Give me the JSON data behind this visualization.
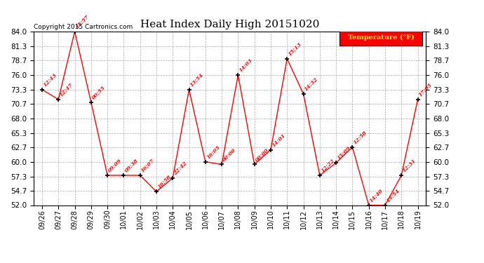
{
  "title": "Heat Index Daily High 20151020",
  "copyright_text": "Copyright 2015 Cartronics.com",
  "legend_label": "Temperature (°F)",
  "dates": [
    "09/26",
    "09/27",
    "09/28",
    "09/29",
    "09/30",
    "10/01",
    "10/02",
    "10/03",
    "10/04",
    "10/05",
    "10/06",
    "10/07",
    "10/08",
    "10/09",
    "10/10",
    "10/11",
    "10/12",
    "10/13",
    "10/14",
    "10/15",
    "10/16",
    "10/17",
    "10/18",
    "10/19"
  ],
  "values": [
    73.3,
    71.5,
    84.0,
    71.0,
    57.5,
    57.5,
    57.5,
    54.5,
    57.0,
    73.3,
    60.0,
    59.5,
    76.0,
    59.5,
    62.2,
    79.0,
    72.5,
    57.5,
    59.8,
    62.7,
    52.0,
    52.0,
    57.5,
    71.5
  ],
  "labels": [
    "12:43",
    "12:47",
    "15:57",
    "00:55",
    "09:09",
    "09:38",
    "16:07",
    "16:58",
    "22:42",
    "13:54",
    "16:05",
    "00:00",
    "14:03",
    "00:00",
    "14:01",
    "15:13",
    "14:32",
    "12:22",
    "15:09",
    "12:58",
    "14:40",
    "13:54",
    "12:31",
    "17:05"
  ],
  "ylim_min": 52.0,
  "ylim_max": 84.0,
  "yticks": [
    52.0,
    54.7,
    57.3,
    60.0,
    62.7,
    65.3,
    68.0,
    70.7,
    73.3,
    76.0,
    78.7,
    81.3,
    84.0
  ],
  "line_color": "red",
  "marker_color": "black",
  "label_color": "red",
  "bg_color": "#ffffff",
  "grid_color": "#aaaaaa",
  "legend_bg": "red",
  "legend_text_color": "yellow",
  "fig_width": 6.9,
  "fig_height": 3.75,
  "dpi": 100
}
